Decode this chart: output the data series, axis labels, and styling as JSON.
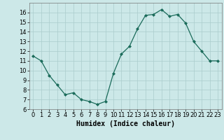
{
  "x": [
    0,
    1,
    2,
    3,
    4,
    5,
    6,
    7,
    8,
    9,
    10,
    11,
    12,
    13,
    14,
    15,
    16,
    17,
    18,
    19,
    20,
    21,
    22,
    23
  ],
  "y": [
    11.5,
    11.0,
    9.5,
    8.5,
    7.5,
    7.7,
    7.0,
    6.8,
    6.5,
    6.8,
    9.7,
    11.7,
    12.5,
    14.3,
    15.7,
    15.8,
    16.3,
    15.6,
    15.8,
    14.9,
    13.0,
    12.0,
    11.0,
    11.0
  ],
  "line_color": "#1a6b5a",
  "marker": "D",
  "marker_size": 2,
  "bg_color": "#cce8e8",
  "grid_color": "#aacccc",
  "xlabel": "Humidex (Indice chaleur)",
  "ylim": [
    6,
    17
  ],
  "xlim": [
    -0.5,
    23.5
  ],
  "yticks": [
    6,
    7,
    8,
    9,
    10,
    11,
    12,
    13,
    14,
    15,
    16
  ],
  "xticks": [
    0,
    1,
    2,
    3,
    4,
    5,
    6,
    7,
    8,
    9,
    10,
    11,
    12,
    13,
    14,
    15,
    16,
    17,
    18,
    19,
    20,
    21,
    22,
    23
  ],
  "label_fontsize": 7,
  "tick_fontsize": 6
}
